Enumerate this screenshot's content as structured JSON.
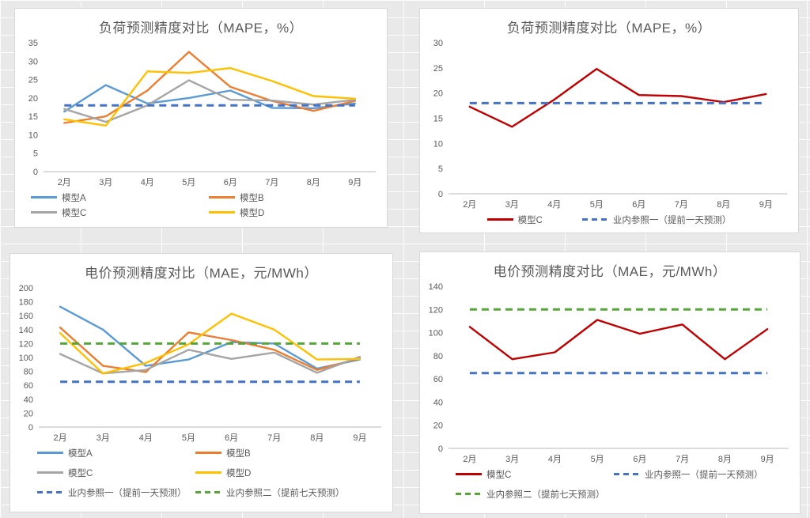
{
  "colors": {
    "model_a_blue": "#5B9BD5",
    "model_b_orange": "#ED7D31",
    "model_c_gray": "#A5A5A5",
    "model_d_yellow": "#FFC000",
    "model_c_red": "#C00000",
    "ref1_blue": "#4472C4",
    "ref2_green": "#56A538",
    "title_gray": "#595959"
  },
  "chart_data": [
    {
      "type": "line",
      "title": "负荷预测精度对比（MAPE，%）",
      "xlabel": "",
      "ylabel": "",
      "categories": [
        "2月",
        "3月",
        "4月",
        "5月",
        "6月",
        "7月",
        "8月",
        "9月"
      ],
      "ylim": [
        0,
        35
      ],
      "ytick_step": 5,
      "grid": false,
      "series": [
        {
          "name": "模型A",
          "color": "#5B9BD5",
          "dashed": false,
          "values": [
            16.3,
            23.5,
            18.5,
            20,
            22,
            17.3,
            17.2,
            18.5
          ]
        },
        {
          "name": "模型B",
          "color": "#ED7D31",
          "dashed": false,
          "values": [
            13.2,
            15,
            22,
            32.5,
            23,
            19.2,
            16.5,
            19.2
          ]
        },
        {
          "name": "模型C",
          "color": "#A5A5A5",
          "dashed": false,
          "values": [
            17,
            13.5,
            18,
            24.8,
            19.5,
            19.3,
            18.2,
            19.5
          ]
        },
        {
          "name": "模型D",
          "color": "#FFC000",
          "dashed": false,
          "values": [
            14.2,
            12.5,
            27.2,
            26.8,
            28.1,
            24.6,
            20.5,
            19.8
          ]
        },
        {
          "name": "业内参照一（提前一天预测）",
          "color": "#4472C4",
          "dashed": true,
          "values": [
            18,
            18,
            18,
            18,
            18,
            18,
            18,
            18
          ]
        }
      ],
      "legend_rows": [
        [
          "模型A",
          "模型B"
        ],
        [
          "模型C",
          "模型D"
        ]
      ],
      "legend_layout": "left",
      "legend_item_width": 234,
      "legend_pad_left": 20,
      "legend_row_gap": 2
    },
    {
      "type": "line",
      "title": "负荷预测精度对比（MAPE，%）",
      "xlabel": "",
      "ylabel": "",
      "categories": [
        "2月",
        "3月",
        "4月",
        "5月",
        "6月",
        "7月",
        "8月",
        "9月"
      ],
      "ylim": [
        0,
        30
      ],
      "ytick_step": 5,
      "grid": false,
      "series": [
        {
          "name": "模型C",
          "color": "#C00000",
          "dashed": false,
          "values": [
            17.3,
            13.3,
            18.7,
            24.8,
            19.6,
            19.4,
            18.2,
            19.8
          ]
        },
        {
          "name": "业内参照一（提前一天预测）",
          "color": "#4472C4",
          "dashed": true,
          "values": [
            18,
            18,
            18,
            18,
            18,
            18,
            18,
            18
          ]
        }
      ],
      "legend_rows": [
        [
          "模型C",
          "业内参照一（提前一天预测）"
        ]
      ],
      "legend_layout": "center",
      "legend_item_gap": 50,
      "legend_row_gap": 0
    },
    {
      "type": "line",
      "title": "电价预测精度对比（MAE，元/MWh）",
      "xlabel": "",
      "ylabel": "",
      "categories": [
        "2月",
        "3月",
        "4月",
        "5月",
        "6月",
        "7月",
        "8月",
        "9月"
      ],
      "ylim": [
        0,
        200
      ],
      "ytick_step": 20,
      "grid": false,
      "series": [
        {
          "name": "模型A",
          "color": "#5B9BD5",
          "dashed": false,
          "values": [
            173,
            140,
            88,
            97,
            122,
            120,
            84,
            97
          ]
        },
        {
          "name": "模型B",
          "color": "#ED7D31",
          "dashed": false,
          "values": [
            143,
            88,
            79,
            136,
            125,
            111,
            82,
            99
          ]
        },
        {
          "name": "模型C",
          "color": "#A5A5A5",
          "dashed": false,
          "values": [
            105,
            77,
            82,
            111,
            98,
            107,
            78,
            101
          ]
        },
        {
          "name": "模型D",
          "color": "#FFC000",
          "dashed": false,
          "values": [
            135,
            77,
            92,
            119,
            163,
            140,
            97,
            98
          ]
        },
        {
          "name": "业内参照一（提前一天预测）",
          "color": "#4472C4",
          "dashed": true,
          "values": [
            65,
            65,
            65,
            65,
            65,
            65,
            65,
            65
          ]
        },
        {
          "name": "业内参照二（提前七天预测）",
          "color": "#56A538",
          "dashed": true,
          "values": [
            120,
            120,
            120,
            120,
            120,
            120,
            120,
            120
          ]
        }
      ],
      "legend_rows": [
        [
          "模型A",
          "模型B"
        ],
        [
          "模型C",
          "模型D"
        ],
        [
          "业内参照一（提前一天预测）",
          "业内参照二（提前七天预测）"
        ]
      ],
      "legend_layout": "left",
      "legend_item_width": 200,
      "legend_pad_left": 34,
      "legend_row_gap": 8
    },
    {
      "type": "line",
      "title": "电价预测精度对比（MAE，元/MWh）",
      "xlabel": "",
      "ylabel": "",
      "categories": [
        "2月",
        "3月",
        "4月",
        "5月",
        "6月",
        "7月",
        "8月",
        "9月"
      ],
      "ylim": [
        0,
        140
      ],
      "ytick_step": 20,
      "grid": false,
      "series": [
        {
          "name": "模型C",
          "color": "#C00000",
          "dashed": false,
          "values": [
            105,
            77,
            83,
            111,
            99,
            107,
            77,
            103
          ]
        },
        {
          "name": "业内参照一（提前一天预测）",
          "color": "#4472C4",
          "dashed": true,
          "values": [
            65,
            65,
            65,
            65,
            65,
            65,
            65,
            65
          ]
        },
        {
          "name": "业内参照二（提前七天预测）",
          "color": "#56A538",
          "dashed": true,
          "values": [
            120,
            120,
            120,
            120,
            120,
            120,
            120,
            120
          ]
        }
      ],
      "legend_rows": [
        [
          "模型C",
          "业内参照一（提前一天预测）"
        ],
        [
          "业内参照二（提前七天预测）"
        ]
      ],
      "legend_layout": "left",
      "legend_item_width": 200,
      "legend_pad_left": 45,
      "legend_row_gap": 8
    }
  ]
}
